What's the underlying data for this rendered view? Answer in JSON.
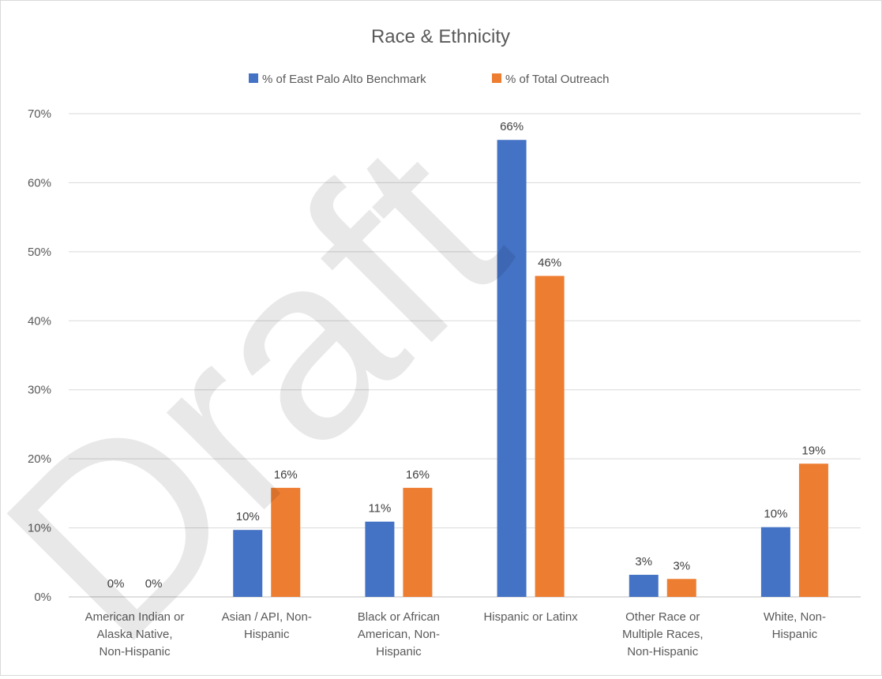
{
  "chart_data": {
    "type": "bar",
    "title": "Race & Ethnicity",
    "categories": [
      [
        "American Indian or",
        "Alaska Native,",
        "Non-Hispanic"
      ],
      [
        "Asian / API, Non-",
        "Hispanic"
      ],
      [
        "Black or African",
        "American, Non-",
        "Hispanic"
      ],
      [
        "Hispanic or Latinx"
      ],
      [
        "Other Race or",
        "Multiple Races,",
        "Non-Hispanic"
      ],
      [
        "White, Non-",
        "Hispanic"
      ]
    ],
    "series": [
      {
        "name": "% of East Palo Alto Benchmark",
        "color": "#4472C4",
        "values": [
          0,
          9.7,
          10.9,
          66.2,
          3.2,
          10.1
        ],
        "labels": [
          "0%",
          "10%",
          "11%",
          "66%",
          "3%",
          "10%"
        ]
      },
      {
        "name": "% of Total Outreach",
        "color": "#ED7D31",
        "values": [
          0,
          15.8,
          15.8,
          46.5,
          2.6,
          19.3
        ],
        "labels": [
          "0%",
          "16%",
          "16%",
          "46%",
          "3%",
          "19%"
        ]
      }
    ],
    "ylim": [
      0,
      70
    ],
    "yticks": [
      "0%",
      "10%",
      "20%",
      "30%",
      "40%",
      "50%",
      "60%",
      "70%"
    ],
    "grid": true,
    "legend_position": "top",
    "xlabel": "",
    "ylabel": ""
  },
  "watermark": "Draft"
}
